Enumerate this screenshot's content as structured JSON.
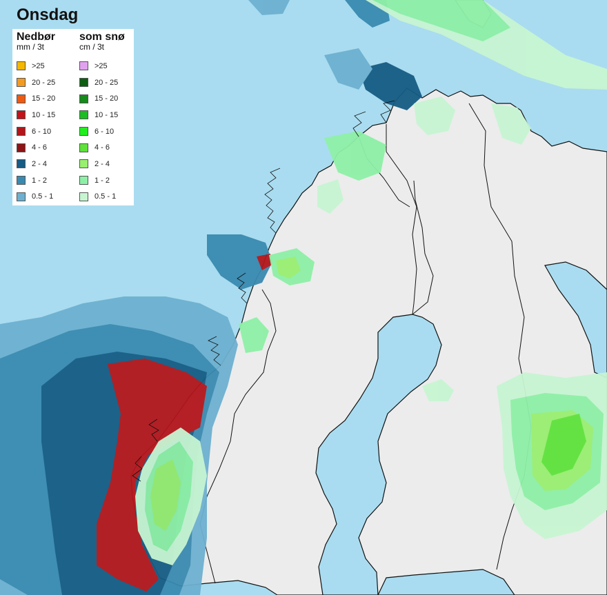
{
  "title": "Onsdag",
  "legend": {
    "precip": {
      "title": "Nedbør",
      "unit": "mm / 3t",
      "items": [
        {
          "label": ">25",
          "color": "#f5b700"
        },
        {
          "label": "20 - 25",
          "color": "#f39b1f"
        },
        {
          "label": "15 - 20",
          "color": "#ee5a12"
        },
        {
          "label": "10 - 15",
          "color": "#c2131a"
        },
        {
          "label": "6 - 10",
          "color": "#b2161b"
        },
        {
          "label": "4 - 6",
          "color": "#8f1416"
        },
        {
          "label": "2 - 4",
          "color": "#165c84"
        },
        {
          "label": "1 - 2",
          "color": "#3a8ab0"
        },
        {
          "label": "0.5 - 1",
          "color": "#6eb0d0"
        }
      ]
    },
    "snow": {
      "title": "som snø",
      "unit": "cm / 3t",
      "items": [
        {
          "label": ">25",
          "color": "#e0a2ee"
        },
        {
          "label": "20 - 25",
          "color": "#0d5e13"
        },
        {
          "label": "15 - 20",
          "color": "#168a1b"
        },
        {
          "label": "10 - 15",
          "color": "#1dbb24"
        },
        {
          "label": "6 - 10",
          "color": "#22ee1f"
        },
        {
          "label": "4 - 6",
          "color": "#5ee23a"
        },
        {
          "label": "2 - 4",
          "color": "#98ef70"
        },
        {
          "label": "1 - 2",
          "color": "#8ef0a6"
        },
        {
          "label": "0.5 - 1",
          "color": "#c7f5d2"
        }
      ]
    }
  },
  "colors": {
    "sea": "#a9dcf0",
    "land": "#ececec",
    "coast": "#111111",
    "border": "#111111"
  }
}
